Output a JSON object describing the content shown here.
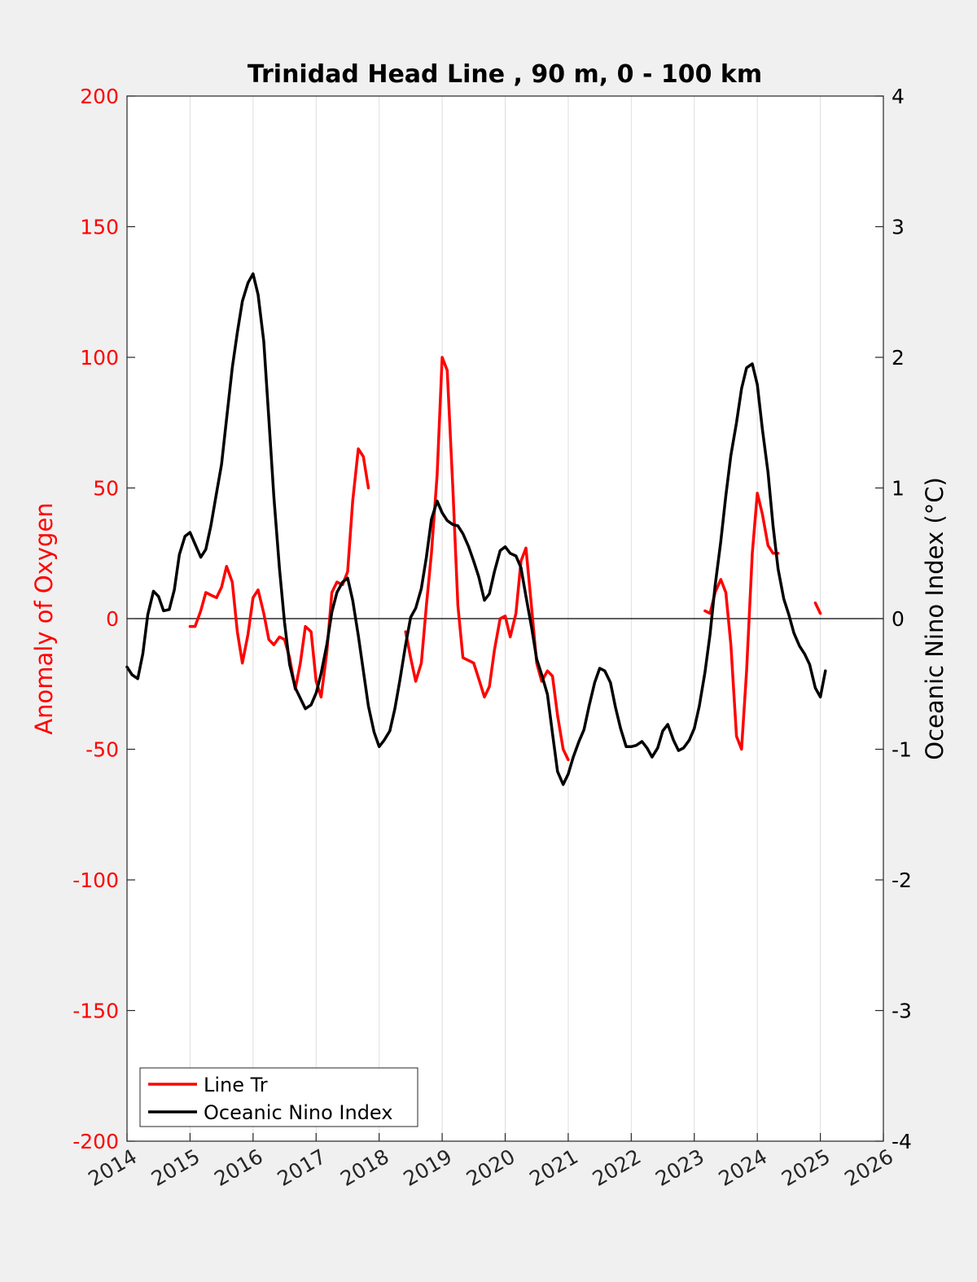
{
  "colors": {
    "oxygen": "#ff0000",
    "oni": "#000000",
    "axes_bg": "#ffffff",
    "figure_bg": "#f0f0f0",
    "grid": "#dedede"
  },
  "chart_data": {
    "type": "line",
    "title": "Trinidad Head Line , 90 m, 0 - 100 km",
    "xlabel": "",
    "ylabel_left": "Anomaly of Oxygen",
    "ylabel_right": "Oceanic Nino Index (°C)",
    "xlim": [
      2014,
      2026
    ],
    "ylim_left": [
      -200,
      200
    ],
    "ylim_right": [
      -4,
      4
    ],
    "x_ticks": [
      "2014",
      "2015",
      "2016",
      "2017",
      "2018",
      "2019",
      "2020",
      "2021",
      "2022",
      "2023",
      "2024",
      "2025",
      "2026"
    ],
    "y_left_ticks": [
      "200",
      "150",
      "100",
      "50",
      "0",
      "-50",
      "-100",
      "-150",
      "-200"
    ],
    "y_right_ticks": [
      "4",
      "3",
      "2",
      "1",
      "0",
      "-1",
      "-2",
      "-3",
      "-4"
    ],
    "grid": "vertical",
    "zero_line": true,
    "legend": {
      "location": "bottom-left",
      "entries": [
        "Line Tr",
        "Oceanic Nino Index"
      ]
    },
    "series": [
      {
        "name": "Line Tr",
        "axis": "left",
        "color": "#ff0000",
        "segments": [
          [
            [
              2015.0,
              -3
            ],
            [
              2015.08,
              -3
            ],
            [
              2015.17,
              3
            ],
            [
              2015.25,
              10
            ],
            [
              2015.33,
              9
            ],
            [
              2015.42,
              8
            ],
            [
              2015.5,
              12
            ],
            [
              2015.58,
              20
            ],
            [
              2015.67,
              14
            ],
            [
              2015.75,
              -5
            ],
            [
              2015.83,
              -17
            ],
            [
              2015.92,
              -6
            ],
            [
              2016.0,
              8
            ],
            [
              2016.08,
              11
            ],
            [
              2016.17,
              2
            ],
            [
              2016.25,
              -8
            ],
            [
              2016.33,
              -10
            ],
            [
              2016.42,
              -7
            ],
            [
              2016.5,
              -8
            ],
            [
              2016.58,
              -15
            ],
            [
              2016.67,
              -27
            ],
            [
              2016.75,
              -17
            ],
            [
              2016.83,
              -3
            ],
            [
              2016.92,
              -5
            ],
            [
              2017.0,
              -24
            ],
            [
              2017.08,
              -30
            ],
            [
              2017.17,
              -13
            ],
            [
              2017.25,
              10
            ],
            [
              2017.33,
              14
            ],
            [
              2017.42,
              13
            ],
            [
              2017.5,
              18
            ],
            [
              2017.58,
              45
            ],
            [
              2017.67,
              65
            ],
            [
              2017.75,
              62
            ],
            [
              2017.83,
              50
            ]
          ],
          [
            [
              2018.42,
              -5
            ],
            [
              2018.5,
              -15
            ],
            [
              2018.58,
              -24
            ],
            [
              2018.67,
              -17
            ],
            [
              2018.75,
              5
            ],
            [
              2018.83,
              25
            ],
            [
              2018.92,
              55
            ],
            [
              2019.0,
              100
            ],
            [
              2019.08,
              95
            ],
            [
              2019.17,
              50
            ],
            [
              2019.25,
              5
            ],
            [
              2019.33,
              -15
            ],
            [
              2019.42,
              -16
            ],
            [
              2019.5,
              -17
            ],
            [
              2019.58,
              -23
            ],
            [
              2019.67,
              -30
            ],
            [
              2019.75,
              -26
            ],
            [
              2019.83,
              -12
            ],
            [
              2019.92,
              0
            ],
            [
              2020.0,
              1
            ],
            [
              2020.08,
              -7
            ],
            [
              2020.17,
              2
            ],
            [
              2020.25,
              22
            ],
            [
              2020.33,
              27
            ],
            [
              2020.42,
              4
            ],
            [
              2020.5,
              -17
            ],
            [
              2020.58,
              -24
            ],
            [
              2020.67,
              -20
            ],
            [
              2020.75,
              -22
            ],
            [
              2020.83,
              -37
            ],
            [
              2020.92,
              -50
            ],
            [
              2021.0,
              -54
            ]
          ],
          [
            [
              2023.17,
              3
            ],
            [
              2023.25,
              2
            ],
            [
              2023.33,
              10
            ],
            [
              2023.42,
              15
            ],
            [
              2023.5,
              10
            ],
            [
              2023.58,
              -10
            ],
            [
              2023.67,
              -45
            ],
            [
              2023.75,
              -50
            ],
            [
              2023.83,
              -20
            ],
            [
              2023.92,
              25
            ],
            [
              2024.0,
              48
            ],
            [
              2024.08,
              40
            ],
            [
              2024.17,
              28
            ],
            [
              2024.25,
              25
            ],
            [
              2024.33,
              25
            ]
          ],
          [
            [
              2024.92,
              6
            ],
            [
              2025.0,
              2
            ]
          ]
        ]
      },
      {
        "name": "Oceanic Nino Index",
        "axis": "right",
        "color": "#000000",
        "points": [
          [
            2014.0,
            -0.37
          ],
          [
            2014.08,
            -0.43
          ],
          [
            2014.17,
            -0.46
          ],
          [
            2014.25,
            -0.27
          ],
          [
            2014.33,
            0.03
          ],
          [
            2014.42,
            0.21
          ],
          [
            2014.5,
            0.17
          ],
          [
            2014.58,
            0.06
          ],
          [
            2014.67,
            0.07
          ],
          [
            2014.75,
            0.22
          ],
          [
            2014.83,
            0.49
          ],
          [
            2014.92,
            0.63
          ],
          [
            2015.0,
            0.66
          ],
          [
            2015.08,
            0.57
          ],
          [
            2015.17,
            0.47
          ],
          [
            2015.25,
            0.53
          ],
          [
            2015.33,
            0.71
          ],
          [
            2015.42,
            0.96
          ],
          [
            2015.5,
            1.18
          ],
          [
            2015.58,
            1.53
          ],
          [
            2015.67,
            1.92
          ],
          [
            2015.75,
            2.19
          ],
          [
            2015.83,
            2.43
          ],
          [
            2015.92,
            2.57
          ],
          [
            2016.0,
            2.64
          ],
          [
            2016.08,
            2.48
          ],
          [
            2016.17,
            2.12
          ],
          [
            2016.25,
            1.53
          ],
          [
            2016.33,
            0.93
          ],
          [
            2016.42,
            0.38
          ],
          [
            2016.5,
            -0.03
          ],
          [
            2016.58,
            -0.35
          ],
          [
            2016.67,
            -0.53
          ],
          [
            2016.75,
            -0.61
          ],
          [
            2016.83,
            -0.69
          ],
          [
            2016.92,
            -0.66
          ],
          [
            2017.0,
            -0.57
          ],
          [
            2017.08,
            -0.42
          ],
          [
            2017.17,
            -0.2
          ],
          [
            2017.25,
            0.05
          ],
          [
            2017.33,
            0.2
          ],
          [
            2017.42,
            0.28
          ],
          [
            2017.5,
            0.31
          ],
          [
            2017.58,
            0.14
          ],
          [
            2017.67,
            -0.13
          ],
          [
            2017.75,
            -0.4
          ],
          [
            2017.83,
            -0.67
          ],
          [
            2017.92,
            -0.87
          ],
          [
            2018.0,
            -0.98
          ],
          [
            2018.08,
            -0.93
          ],
          [
            2018.17,
            -0.86
          ],
          [
            2018.25,
            -0.69
          ],
          [
            2018.33,
            -0.47
          ],
          [
            2018.42,
            -0.2
          ],
          [
            2018.5,
            0.01
          ],
          [
            2018.58,
            0.08
          ],
          [
            2018.67,
            0.23
          ],
          [
            2018.75,
            0.47
          ],
          [
            2018.83,
            0.76
          ],
          [
            2018.92,
            0.9
          ],
          [
            2019.0,
            0.81
          ],
          [
            2019.08,
            0.75
          ],
          [
            2019.17,
            0.72
          ],
          [
            2019.25,
            0.71
          ],
          [
            2019.33,
            0.65
          ],
          [
            2019.42,
            0.55
          ],
          [
            2019.5,
            0.44
          ],
          [
            2019.58,
            0.32
          ],
          [
            2019.67,
            0.14
          ],
          [
            2019.75,
            0.19
          ],
          [
            2019.83,
            0.36
          ],
          [
            2019.92,
            0.52
          ],
          [
            2020.0,
            0.55
          ],
          [
            2020.08,
            0.5
          ],
          [
            2020.17,
            0.48
          ],
          [
            2020.25,
            0.39
          ],
          [
            2020.33,
            0.17
          ],
          [
            2020.42,
            -0.07
          ],
          [
            2020.5,
            -0.31
          ],
          [
            2020.58,
            -0.43
          ],
          [
            2020.67,
            -0.58
          ],
          [
            2020.75,
            -0.88
          ],
          [
            2020.83,
            -1.17
          ],
          [
            2020.92,
            -1.27
          ],
          [
            2021.0,
            -1.19
          ],
          [
            2021.08,
            -1.06
          ],
          [
            2021.17,
            -0.94
          ],
          [
            2021.25,
            -0.85
          ],
          [
            2021.33,
            -0.67
          ],
          [
            2021.42,
            -0.49
          ],
          [
            2021.5,
            -0.38
          ],
          [
            2021.58,
            -0.4
          ],
          [
            2021.67,
            -0.49
          ],
          [
            2021.75,
            -0.68
          ],
          [
            2021.83,
            -0.84
          ],
          [
            2021.92,
            -0.98
          ],
          [
            2022.0,
            -0.98
          ],
          [
            2022.08,
            -0.97
          ],
          [
            2022.17,
            -0.94
          ],
          [
            2022.25,
            -0.99
          ],
          [
            2022.33,
            -1.06
          ],
          [
            2022.42,
            -0.99
          ],
          [
            2022.5,
            -0.86
          ],
          [
            2022.58,
            -0.81
          ],
          [
            2022.67,
            -0.93
          ],
          [
            2022.75,
            -1.01
          ],
          [
            2022.83,
            -0.99
          ],
          [
            2022.92,
            -0.93
          ],
          [
            2023.0,
            -0.84
          ],
          [
            2023.08,
            -0.67
          ],
          [
            2023.17,
            -0.41
          ],
          [
            2023.25,
            -0.12
          ],
          [
            2023.33,
            0.25
          ],
          [
            2023.42,
            0.59
          ],
          [
            2023.5,
            0.94
          ],
          [
            2023.58,
            1.25
          ],
          [
            2023.67,
            1.5
          ],
          [
            2023.75,
            1.76
          ],
          [
            2023.83,
            1.92
          ],
          [
            2023.92,
            1.95
          ],
          [
            2024.0,
            1.79
          ],
          [
            2024.08,
            1.45
          ],
          [
            2024.17,
            1.12
          ],
          [
            2024.25,
            0.71
          ],
          [
            2024.33,
            0.38
          ],
          [
            2024.42,
            0.15
          ],
          [
            2024.5,
            0.03
          ],
          [
            2024.58,
            -0.11
          ],
          [
            2024.67,
            -0.21
          ],
          [
            2024.75,
            -0.27
          ],
          [
            2024.83,
            -0.35
          ],
          [
            2024.92,
            -0.53
          ],
          [
            2025.0,
            -0.6
          ],
          [
            2025.08,
            -0.4
          ]
        ]
      }
    ]
  }
}
